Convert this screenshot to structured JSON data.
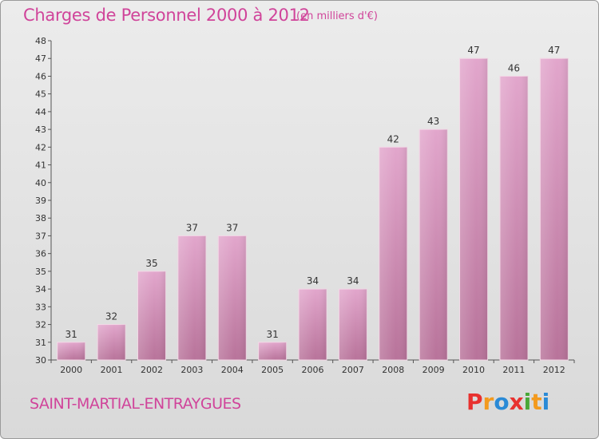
{
  "header": {
    "title": "Charges de Personnel 2000 à 2012",
    "subtitle": "(en milliers d'€)"
  },
  "footer": {
    "commune": "SAINT-MARTIAL-ENTRAYGUES",
    "logo_text": "Proxiti",
    "logo_colors": [
      "#e8312f",
      "#f39a1e",
      "#2a8ad6",
      "#e8312f",
      "#49a838",
      "#f39a1e",
      "#2a8ad6"
    ]
  },
  "colors": {
    "bar_top": "#e2a6cc",
    "bar_bottom": "#b8739a",
    "accent": "#d0449a"
  },
  "chart_data": {
    "type": "bar",
    "title": "Charges de Personnel 2000 à 2012",
    "categories": [
      "2000",
      "2001",
      "2002",
      "2003",
      "2004",
      "2005",
      "2006",
      "2007",
      "2008",
      "2009",
      "2010",
      "2011",
      "2012"
    ],
    "values": [
      31,
      32,
      35,
      37,
      37,
      31,
      34,
      34,
      42,
      43,
      47,
      46,
      47
    ],
    "ylim": [
      30,
      48
    ],
    "yticks": [
      30,
      31,
      32,
      33,
      34,
      35,
      36,
      37,
      38,
      39,
      40,
      41,
      42,
      43,
      44,
      45,
      46,
      47,
      48
    ],
    "grid": false,
    "legend": "none"
  }
}
